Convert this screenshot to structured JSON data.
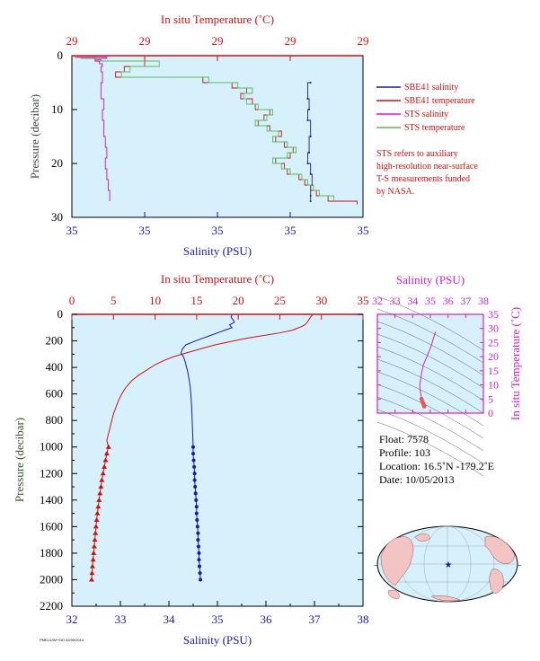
{
  "chart_data": [
    {
      "type": "line",
      "top_axis_label": "In situ Temperature (˚C)",
      "top_ticks": [
        "29",
        "29",
        "29",
        "29",
        "29"
      ],
      "ylabel": "Pressure (decibar)",
      "y_ticks": [
        "0",
        "10",
        "20",
        "30"
      ],
      "ylim": [
        0,
        30
      ],
      "xlabel": "Salinity (PSU)",
      "bottom_ticks": [
        "35",
        "35",
        "35",
        "35",
        "35"
      ],
      "legend": [
        "SBE41 salinity",
        "SBE41 temperature",
        "STS salinity",
        "STS temperature"
      ],
      "note": [
        "STS refers to auxiliary",
        "high-resolution near-surface",
        "T-S measurements funded",
        "by NASA."
      ],
      "series_units": "normalized axis fraction (0-1) of the displayed range",
      "series": [
        {
          "name": "SBE41 salinity",
          "color": "#1a1aa8",
          "p": [
            5,
            8,
            10,
            12,
            15,
            18,
            20,
            22,
            24,
            26,
            27
          ],
          "v": [
            0.82,
            0.81,
            0.815,
            0.81,
            0.82,
            0.815,
            0.81,
            0.82,
            0.825,
            0.82,
            0.82
          ]
        },
        {
          "name": "SBE41 temperature",
          "color": "#cc1111",
          "p": [
            0.3,
            1,
            2,
            3,
            4,
            5,
            6,
            7,
            8,
            9,
            10,
            11,
            12,
            13,
            14,
            15,
            16,
            17,
            18,
            19,
            20,
            21,
            22,
            23,
            24,
            25,
            26,
            27,
            27.6
          ],
          "v": [
            0.01,
            0.08,
            0.25,
            0.18,
            0.15,
            0.45,
            0.55,
            0.6,
            0.58,
            0.62,
            0.63,
            0.68,
            0.66,
            0.64,
            0.68,
            0.72,
            0.7,
            0.73,
            0.76,
            0.75,
            0.7,
            0.73,
            0.74,
            0.78,
            0.8,
            0.82,
            0.84,
            0.88,
            0.98
          ]
        },
        {
          "name": "STS salinity",
          "color": "#cc22cc",
          "p": [
            0.3,
            0.5,
            0.7,
            1,
            1.5,
            2,
            3,
            5,
            8,
            10,
            12,
            15,
            17,
            19,
            21,
            23,
            25,
            27
          ],
          "v": [
            0.02,
            0.12,
            0.08,
            0.1,
            0.095,
            0.105,
            0.1,
            0.105,
            0.1,
            0.11,
            0.105,
            0.11,
            0.115,
            0.12,
            0.115,
            0.12,
            0.125,
            0.13
          ]
        },
        {
          "name": "STS temperature",
          "color": "#55bb55",
          "p": [
            0.5,
            1,
            2,
            3,
            4,
            5,
            6,
            7,
            8,
            9,
            10,
            11,
            12,
            13,
            14,
            15,
            16,
            17,
            18,
            19,
            20,
            21,
            22,
            23,
            24,
            25,
            26,
            27
          ],
          "v": [
            0.03,
            0.1,
            0.3,
            0.2,
            0.17,
            0.47,
            0.57,
            0.62,
            0.59,
            0.6,
            0.64,
            0.69,
            0.67,
            0.63,
            0.67,
            0.71,
            0.69,
            0.74,
            0.77,
            0.74,
            0.69,
            0.72,
            0.75,
            0.79,
            0.81,
            0.83,
            0.85,
            0.9
          ]
        }
      ]
    },
    {
      "type": "line",
      "top_axis_label": "In situ Temperature (˚C)",
      "top_ticks": [
        "0",
        "5",
        "10",
        "15",
        "20",
        "25",
        "30",
        "35"
      ],
      "temp_range": [
        0,
        35
      ],
      "ylabel": "Pressure (decibar)",
      "y_ticks": [
        "0",
        "200",
        "400",
        "600",
        "800",
        "1000",
        "1200",
        "1400",
        "1600",
        "1800",
        "2000",
        "2200"
      ],
      "ylim": [
        0,
        2200
      ],
      "xlabel": "Salinity (PSU)",
      "bottom_ticks": [
        "32",
        "33",
        "34",
        "35",
        "36",
        "37",
        "38"
      ],
      "sal_range": [
        32,
        38
      ],
      "temperature": {
        "color": "#cc1111",
        "p": [
          5,
          20,
          40,
          60,
          80,
          100,
          120,
          140,
          160,
          180,
          200,
          230,
          260,
          290,
          320,
          350,
          380,
          420,
          460,
          500,
          550,
          600,
          650,
          700,
          750,
          800,
          850,
          900,
          950,
          1000,
          1050,
          1100,
          1150,
          1200,
          1250,
          1300,
          1350,
          1400,
          1450,
          1500,
          1550,
          1600,
          1650,
          1700,
          1750,
          1800,
          1850,
          1900,
          1950,
          2000
        ],
        "v": [
          28.9,
          28.7,
          28.5,
          28.3,
          28.0,
          27.3,
          26.5,
          25.0,
          23.0,
          21.0,
          19.5,
          17.2,
          15.5,
          13.8,
          12.2,
          11.0,
          10.0,
          9.0,
          8.0,
          7.2,
          6.5,
          6.0,
          5.6,
          5.3,
          5.0,
          4.8,
          4.6,
          4.4,
          4.2,
          4.4,
          4.2,
          4.05,
          3.9,
          3.75,
          3.6,
          3.5,
          3.38,
          3.27,
          3.17,
          3.07,
          2.98,
          2.9,
          2.83,
          2.76,
          2.69,
          2.62,
          2.55,
          2.48,
          2.42,
          2.37
        ]
      },
      "salinity": {
        "color": "#1a1aa8",
        "p": [
          5,
          20,
          40,
          60,
          80,
          100,
          120,
          140,
          160,
          180,
          200,
          230,
          260,
          290,
          320,
          350,
          380,
          420,
          460,
          500,
          550,
          600,
          700,
          800,
          900,
          1000,
          1050,
          1100,
          1150,
          1200,
          1250,
          1300,
          1350,
          1400,
          1450,
          1500,
          1550,
          1600,
          1650,
          1700,
          1750,
          1800,
          1850,
          1900,
          1950,
          2000
        ],
        "v": [
          35.3,
          35.28,
          35.32,
          35.35,
          35.25,
          35.3,
          35.15,
          35.0,
          34.85,
          34.7,
          34.55,
          34.35,
          34.28,
          34.25,
          34.3,
          34.33,
          34.35,
          34.38,
          34.4,
          34.42,
          34.44,
          34.45,
          34.47,
          34.48,
          34.49,
          34.5,
          34.5,
          34.51,
          34.52,
          34.53,
          34.53,
          34.54,
          34.55,
          34.56,
          34.57,
          34.57,
          34.58,
          34.59,
          34.6,
          34.6,
          34.61,
          34.62,
          34.62,
          34.63,
          34.64,
          34.65
        ]
      }
    },
    {
      "type": "scatter",
      "title": "Salinity (PSU)",
      "x_ticks": [
        "32",
        "33",
        "34",
        "35",
        "36",
        "37",
        "38"
      ],
      "xlim": [
        32,
        38
      ],
      "ylabel": "In situ Temperature (˚C)",
      "y_ticks": [
        "0",
        "5",
        "10",
        "15",
        "20",
        "25",
        "30",
        "35"
      ],
      "ylim": [
        0,
        35
      ],
      "points_sal": [
        35.3,
        35.2,
        35.1,
        35.0,
        34.8,
        34.6,
        34.5,
        34.45,
        34.4,
        34.42,
        34.45,
        34.48,
        34.5,
        34.55,
        34.6,
        34.65
      ],
      "points_t": [
        28.9,
        27,
        25,
        23,
        20,
        17,
        14,
        12,
        10,
        8,
        7,
        6,
        5,
        4,
        3.3,
        2.4
      ]
    }
  ],
  "info": {
    "float": "Float:  7578",
    "profile": "Profile:  103",
    "location": "Location:  16.5˚N  -179.2˚E",
    "date": "Date:  10/05/2013"
  },
  "footer_text": "PMEL/UW+SIO  02/05/2014",
  "colors": {
    "plot_bg": "#d6f1fb",
    "temperature": "#cc1111",
    "salinity": "#1a1aa8",
    "magenta": "#cc22cc",
    "axis_label_green": "#335533"
  }
}
